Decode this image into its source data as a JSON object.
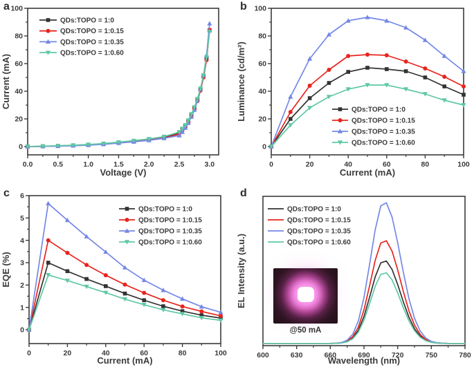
{
  "style": {
    "background": "#ffffff",
    "axis_color": "#3a3a3a",
    "text_color": "#3a3a3a",
    "series_colors": [
      "#333333",
      "#e8241c",
      "#7487e6",
      "#5fc8a6"
    ]
  },
  "chart_data": [
    {
      "panel_label": "a",
      "type": "line",
      "xlabel": "Voltage (V)",
      "ylabel": "Current (mA)",
      "xlim": [
        0,
        3.15
      ],
      "ylim": [
        -6,
        100
      ],
      "legend_position": "top-left",
      "legend_markers": true,
      "xticks": {
        "values": [
          0,
          0.5,
          1.0,
          1.5,
          2.0,
          2.5,
          3.0
        ],
        "labels": [
          "0.0",
          "0.5",
          "1.0",
          "1.5",
          "2.0",
          "2.5",
          "3.0"
        ]
      },
      "yticks": {
        "values": [
          0,
          20,
          40,
          60,
          80,
          100
        ],
        "labels": [
          "0",
          "20",
          "40",
          "60",
          "80",
          "100"
        ]
      },
      "x": [
        0,
        0.25,
        0.5,
        0.75,
        1.0,
        1.25,
        1.5,
        1.75,
        2.0,
        2.25,
        2.5,
        2.55,
        2.6,
        2.65,
        2.7,
        2.75,
        2.8,
        2.85,
        2.9,
        2.95,
        3.0
      ],
      "series": [
        {
          "name": "QDs:TOPO = 1:0",
          "color": "#333333",
          "marker": "square",
          "values": [
            0,
            0.2,
            0.5,
            0.8,
            1.3,
            2.0,
            3.0,
            4.0,
            5.2,
            6.8,
            10.0,
            12.5,
            15.0,
            18.5,
            23.0,
            28.0,
            34.0,
            41.5,
            51.0,
            64.0,
            84.0
          ]
        },
        {
          "name": "QDs:TOPO = 1:0.15",
          "color": "#e8241c",
          "marker": "circle",
          "values": [
            0,
            0.1,
            0.4,
            0.7,
            1.1,
            1.8,
            2.7,
            3.6,
            4.8,
            6.3,
            9.0,
            11.5,
            14.0,
            17.5,
            22.0,
            27.0,
            33.0,
            40.5,
            50.0,
            62.5,
            84.5
          ]
        },
        {
          "name": "QDs:TOPO = 1:0.35",
          "color": "#7487e6",
          "marker": "triangle-up",
          "values": [
            0,
            0.1,
            0.3,
            0.6,
            1.0,
            1.6,
            2.5,
            3.4,
            4.5,
            6.0,
            8.0,
            10.5,
            13.5,
            17.0,
            21.5,
            26.5,
            33.5,
            41.5,
            51.5,
            66.0,
            89.0
          ]
        },
        {
          "name": "QDs:TOPO = 1:0.60",
          "color": "#5fc8a6",
          "marker": "triangle-down",
          "values": [
            0,
            0.3,
            0.6,
            1.0,
            1.5,
            2.2,
            3.2,
            4.3,
            5.5,
            7.2,
            10.5,
            13.0,
            15.5,
            19.0,
            23.5,
            28.5,
            34.5,
            42.0,
            51.5,
            64.5,
            83.0
          ]
        }
      ]
    },
    {
      "panel_label": "b",
      "type": "line",
      "xlabel": "Current (mA)",
      "ylabel": "Luminance (cd/m²)",
      "xlim": [
        0,
        100
      ],
      "ylim": [
        -6,
        100
      ],
      "legend_position": "lower-right",
      "legend_markers": true,
      "xticks": {
        "values": [
          0,
          20,
          40,
          60,
          80,
          100
        ],
        "labels": [
          "0",
          "20",
          "40",
          "60",
          "80",
          "100"
        ]
      },
      "yticks": {
        "values": [
          0,
          20,
          40,
          60,
          80,
          100
        ],
        "labels": [
          "0",
          "20",
          "40",
          "60",
          "80",
          "100"
        ]
      },
      "x": [
        0,
        10,
        20,
        30,
        40,
        50,
        60,
        70,
        80,
        90,
        100
      ],
      "series": [
        {
          "name": "QDs:TOPO = 1:0",
          "color": "#333333",
          "marker": "square",
          "values": [
            0,
            20,
            35,
            46,
            54,
            57,
            56,
            54.5,
            50,
            43.5,
            37.5
          ]
        },
        {
          "name": "QDs:TOPO = 1:0.15",
          "color": "#e8241c",
          "marker": "circle",
          "values": [
            0,
            25,
            44,
            55.5,
            65.5,
            66.5,
            66,
            61.5,
            56.5,
            50.5,
            43.5
          ]
        },
        {
          "name": "QDs:TOPO = 1:0.35",
          "color": "#7487e6",
          "marker": "triangle-up",
          "values": [
            0,
            36,
            63.5,
            81,
            91,
            93.5,
            91,
            86,
            77,
            65.5,
            54.5
          ]
        },
        {
          "name": "QDs:TOPO = 1:0.60",
          "color": "#5fc8a6",
          "marker": "triangle-down",
          "values": [
            0,
            15.5,
            28,
            36,
            41.5,
            44.5,
            44.5,
            41.5,
            38,
            33.5,
            30
          ]
        }
      ]
    },
    {
      "panel_label": "c",
      "type": "line",
      "xlabel": "Current (mA)",
      "ylabel": "EQE (%)",
      "xlim": [
        0,
        100
      ],
      "ylim": [
        -0.62,
        6
      ],
      "legend_position": "top-right",
      "legend_markers": true,
      "xticks": {
        "values": [
          0,
          20,
          40,
          60,
          80,
          100
        ],
        "labels": [
          "0",
          "20",
          "40",
          "60",
          "80",
          "100"
        ]
      },
      "yticks": {
        "values": [
          0,
          1,
          2,
          3,
          4,
          5,
          6
        ],
        "labels": [
          "0",
          "1",
          "2",
          "3",
          "4",
          "5",
          "6"
        ]
      },
      "x": [
        0,
        10,
        20,
        30,
        40,
        50,
        60,
        70,
        80,
        90,
        100
      ],
      "series": [
        {
          "name": "QDs:TOPO = 1:0",
          "color": "#333333",
          "marker": "square",
          "values": [
            0,
            3.0,
            2.62,
            2.27,
            1.95,
            1.62,
            1.32,
            1.05,
            0.83,
            0.65,
            0.52
          ]
        },
        {
          "name": "QDs:TOPO = 1:0.15",
          "color": "#e8241c",
          "marker": "circle",
          "values": [
            0,
            4.0,
            3.44,
            2.9,
            2.44,
            2.02,
            1.65,
            1.32,
            1.04,
            0.82,
            0.62
          ]
        },
        {
          "name": "QDs:TOPO = 1:0.35",
          "color": "#7487e6",
          "marker": "triangle-up",
          "values": [
            0,
            5.65,
            4.9,
            4.17,
            3.48,
            2.78,
            2.22,
            1.77,
            1.38,
            1.03,
            0.78
          ]
        },
        {
          "name": "QDs:TOPO = 1:0.60",
          "color": "#5fc8a6",
          "marker": "triangle-down",
          "values": [
            0,
            2.45,
            2.2,
            1.93,
            1.66,
            1.37,
            1.12,
            0.89,
            0.71,
            0.53,
            0.42
          ]
        }
      ]
    },
    {
      "panel_label": "d",
      "type": "line",
      "xlabel": "Wavelength (nm)",
      "ylabel": "EL Intensity (a.u.)",
      "xlim": [
        600,
        780
      ],
      "ylim": [
        -0.015,
        1.0
      ],
      "legend_position": "top-left",
      "legend_markers": false,
      "inset_caption": "@50 mA",
      "peak_wavelength_nm": 708,
      "xticks": {
        "values": [
          600,
          630,
          660,
          690,
          720,
          750,
          780
        ],
        "labels": [
          "600",
          "630",
          "660",
          "690",
          "720",
          "750",
          "780"
        ]
      },
      "yticks": {
        "values": [],
        "labels": []
      },
      "x_start": 600,
      "x_step": 5,
      "series": [
        {
          "name": "QDs:TOPO = 1:0",
          "color": "#333333",
          "marker": "none",
          "values": [
            0,
            0,
            0,
            0,
            0,
            0,
            0,
            0,
            0,
            0,
            0,
            0,
            0,
            0.001,
            0.004,
            0.013,
            0.037,
            0.09,
            0.184,
            0.314,
            0.452,
            0.548,
            0.56,
            0.503,
            0.401,
            0.284,
            0.179,
            0.1,
            0.05,
            0.022,
            0.008,
            0.003,
            0.001,
            0,
            0,
            0,
            0
          ]
        },
        {
          "name": "QDs:TOPO = 1:0.15",
          "color": "#e8241c",
          "marker": "none",
          "values": [
            0,
            0,
            0,
            0,
            0,
            0,
            0,
            0,
            0,
            0,
            0,
            0,
            0,
            0.001,
            0.005,
            0.016,
            0.046,
            0.112,
            0.229,
            0.392,
            0.565,
            0.683,
            0.698,
            0.627,
            0.501,
            0.355,
            0.223,
            0.125,
            0.062,
            0.027,
            0.011,
            0.004,
            0.001,
            0,
            0,
            0,
            0
          ]
        },
        {
          "name": "QDs:TOPO = 1:0.35",
          "color": "#7487e6",
          "marker": "none",
          "values": [
            0,
            0,
            0,
            0,
            0,
            0,
            0,
            0,
            0,
            0,
            0,
            0,
            0,
            0.002,
            0.006,
            0.022,
            0.063,
            0.153,
            0.313,
            0.537,
            0.773,
            0.935,
            0.956,
            0.859,
            0.685,
            0.486,
            0.306,
            0.171,
            0.085,
            0.037,
            0.014,
            0.005,
            0.002,
            0,
            0,
            0,
            0
          ]
        },
        {
          "name": "QDs:TOPO = 1:0.60",
          "color": "#5fc8a6",
          "marker": "none",
          "values": [
            0,
            0,
            0,
            0,
            0,
            0,
            0,
            0,
            0,
            0,
            0,
            0,
            0,
            0.001,
            0.003,
            0.011,
            0.032,
            0.077,
            0.158,
            0.27,
            0.388,
            0.47,
            0.48,
            0.432,
            0.344,
            0.244,
            0.154,
            0.086,
            0.043,
            0.019,
            0.007,
            0.003,
            0.001,
            0,
            0,
            0,
            0
          ]
        }
      ]
    }
  ]
}
